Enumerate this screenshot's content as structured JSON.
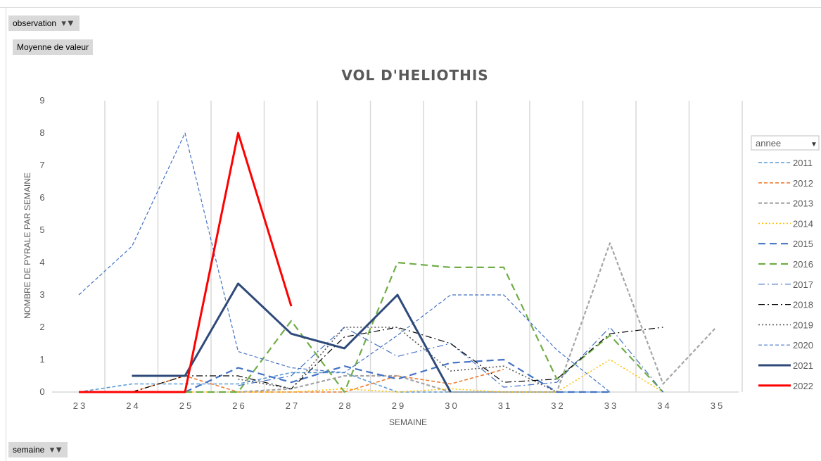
{
  "toolbar": {
    "observation_label": "observation",
    "moyenne_label": "Moyenne de valeur",
    "semaine_label": "semaine"
  },
  "chart_data": {
    "type": "line",
    "title": "VOL D'HELIOTHIS",
    "xlabel": "SEMAINE",
    "ylabel": "NOMBRE DE PYRALE PAR SEMAINE",
    "categories": [
      "23",
      "24",
      "25",
      "26",
      "27",
      "28",
      "29",
      "30",
      "31",
      "32",
      "33",
      "34",
      "35"
    ],
    "ylim": [
      0,
      9
    ],
    "yticks": [
      0,
      1,
      2,
      3,
      4,
      5,
      6,
      7,
      8,
      9
    ],
    "grid": "vertical",
    "legend_title": "annee",
    "legend_position": "right",
    "series": [
      {
        "name": "2011",
        "color": "#5b9bd5",
        "style": "dash",
        "width": 1.6,
        "values": [
          0,
          0.25,
          0.25,
          0.25,
          0.6,
          0.6,
          0,
          0,
          0,
          0,
          0,
          null,
          null
        ]
      },
      {
        "name": "2012",
        "color": "#ed7d31",
        "style": "dash",
        "width": 1.6,
        "values": [
          0,
          0,
          0.5,
          0,
          0,
          0,
          0.5,
          0.25,
          0.7,
          null,
          null,
          null,
          null
        ]
      },
      {
        "name": "2013",
        "color": "#a5a5a5",
        "style": "dash",
        "width": 2.2,
        "values": [
          null,
          null,
          null,
          0,
          0.1,
          0.5,
          0.5,
          0,
          0,
          0,
          4.6,
          0.25,
          2
        ]
      },
      {
        "name": "2014",
        "color": "#ffc000",
        "style": "dot",
        "width": 1.6,
        "values": [
          null,
          null,
          0,
          0,
          0,
          0.1,
          0,
          0.1,
          0,
          0,
          1,
          0,
          null
        ]
      },
      {
        "name": "2015",
        "color": "#4472c4",
        "style": "longdash",
        "width": 2.2,
        "values": [
          null,
          null,
          0,
          0.75,
          0.3,
          0.8,
          0.4,
          0.9,
          1,
          0,
          0,
          null,
          null
        ]
      },
      {
        "name": "2016",
        "color": "#70ad47",
        "style": "longdash",
        "width": 2.2,
        "values": [
          null,
          null,
          0,
          0,
          2.2,
          0,
          4,
          3.85,
          3.85,
          0.4,
          1.75,
          0,
          null
        ]
      },
      {
        "name": "2017",
        "color": "#4472c4",
        "style": "dashdot",
        "width": 1.2,
        "values": [
          null,
          null,
          null,
          0.2,
          0.5,
          2,
          1.1,
          1.5,
          0.15,
          0.3,
          2,
          0,
          null
        ]
      },
      {
        "name": "2018",
        "color": "#000000",
        "style": "dashdot",
        "width": 1.2,
        "values": [
          null,
          0,
          0.5,
          0.5,
          0.1,
          1.7,
          2,
          1.5,
          0.3,
          0.4,
          1.8,
          2,
          null
        ]
      },
      {
        "name": "2019",
        "color": "#595959",
        "style": "dot",
        "width": 1.6,
        "values": [
          null,
          null,
          null,
          0.4,
          0.1,
          2,
          2,
          0.65,
          0.8,
          0,
          null,
          null,
          null
        ]
      },
      {
        "name": "2020",
        "color": "#4472c4",
        "style": "dash",
        "width": 1.2,
        "values": [
          3,
          4.5,
          8,
          1.25,
          0.75,
          0.6,
          1.75,
          3,
          3,
          1.3,
          0,
          null,
          null
        ]
      },
      {
        "name": "2021",
        "color": "#2f4a7a",
        "style": "solid",
        "width": 3,
        "values": [
          null,
          0.5,
          0.5,
          3.35,
          1.8,
          1.35,
          3,
          0,
          null,
          null,
          null,
          null,
          null
        ]
      },
      {
        "name": "2022",
        "color": "#ff0000",
        "style": "solid",
        "width": 3,
        "values": [
          0,
          0,
          0,
          8,
          2.65,
          null,
          null,
          null,
          null,
          null,
          null,
          null,
          null
        ]
      }
    ]
  }
}
